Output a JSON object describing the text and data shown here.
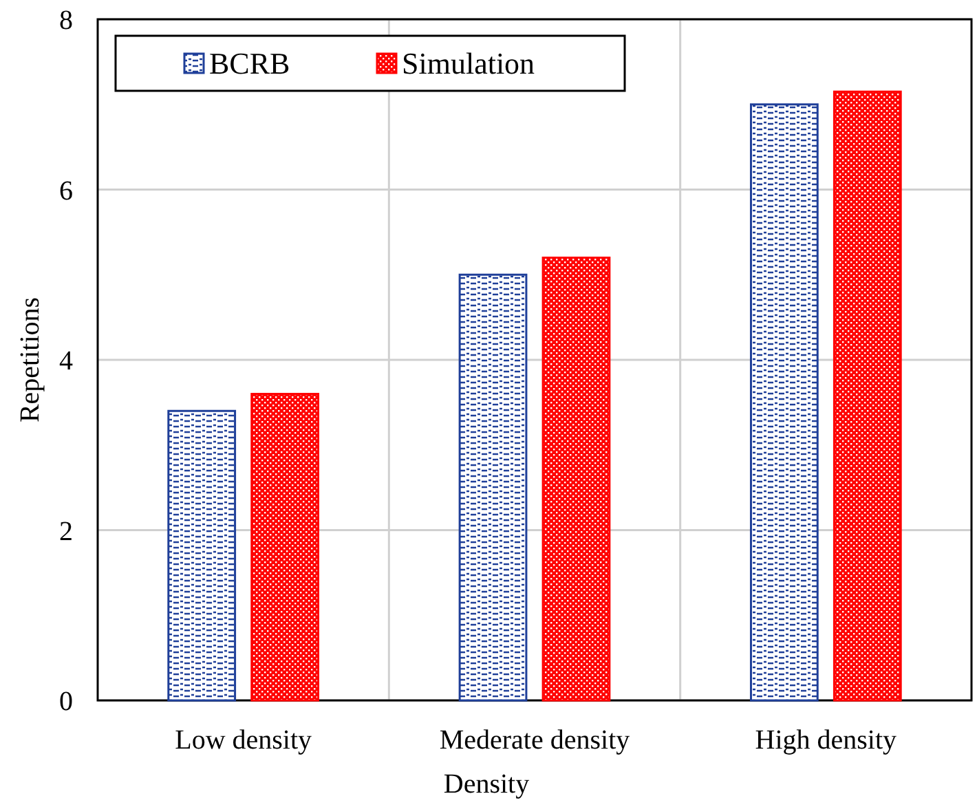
{
  "chart_data": {
    "type": "bar",
    "xlabel": "Density",
    "ylabel": "Repetitions",
    "categories": [
      "Low density",
      "Mederate density",
      "High density"
    ],
    "series": [
      {
        "name": "BCRB",
        "color": "#1f3f99",
        "values": [
          3.4,
          5.0,
          7.0
        ]
      },
      {
        "name": "Simulation",
        "color": "#ff0000",
        "values": [
          3.6,
          5.2,
          7.15
        ]
      }
    ],
    "ylim": [
      0,
      8
    ],
    "yticks": [
      0,
      2,
      4,
      6,
      8
    ],
    "grid": true,
    "legend": "top left"
  }
}
